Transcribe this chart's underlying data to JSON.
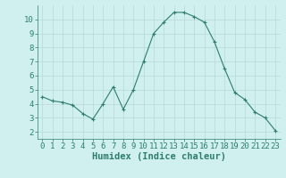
{
  "x": [
    0,
    1,
    2,
    3,
    4,
    5,
    6,
    7,
    8,
    9,
    10,
    11,
    12,
    13,
    14,
    15,
    16,
    17,
    18,
    19,
    20,
    21,
    22,
    23
  ],
  "y": [
    4.5,
    4.2,
    4.1,
    3.9,
    3.3,
    2.9,
    4.0,
    5.2,
    3.6,
    5.0,
    7.0,
    9.0,
    9.8,
    10.5,
    10.5,
    10.2,
    9.8,
    8.4,
    6.5,
    4.8,
    4.3,
    3.4,
    3.0,
    2.1
  ],
  "line_color": "#2e7d6e",
  "marker": "+",
  "marker_size": 3,
  "bg_color": "#cff0ee",
  "grid_color": "#b8d8d5",
  "xlabel": "Humidex (Indice chaleur)",
  "xlim": [
    -0.5,
    23.5
  ],
  "ylim": [
    1.5,
    11.0
  ],
  "yticks": [
    2,
    3,
    4,
    5,
    6,
    7,
    8,
    9,
    10
  ],
  "xticks": [
    0,
    1,
    2,
    3,
    4,
    5,
    6,
    7,
    8,
    9,
    10,
    11,
    12,
    13,
    14,
    15,
    16,
    17,
    18,
    19,
    20,
    21,
    22,
    23
  ],
  "tick_fontsize": 6.5,
  "label_fontsize": 7.5
}
